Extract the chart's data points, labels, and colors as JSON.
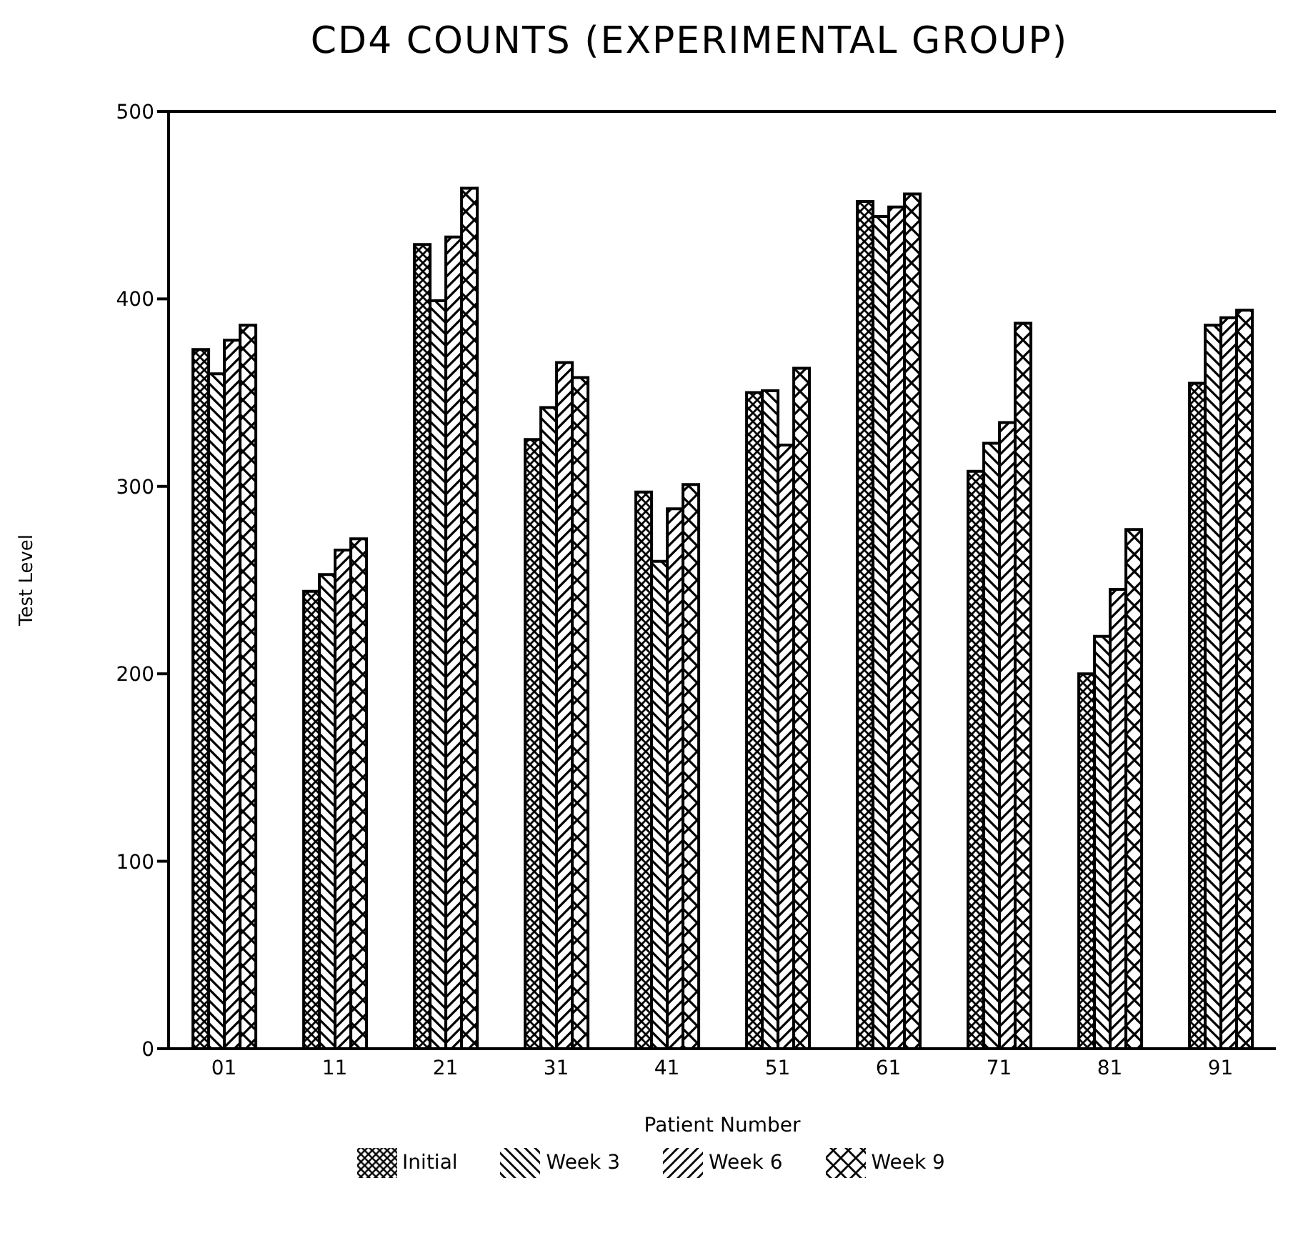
{
  "chart_data": {
    "type": "bar",
    "title": "CD4 COUNTS (EXPERIMENTAL GROUP)",
    "xlabel": "Patient Number",
    "ylabel": "Test Level",
    "categories": [
      "01",
      "11",
      "21",
      "31",
      "41",
      "51",
      "61",
      "71",
      "81",
      "91"
    ],
    "series": [
      {
        "name": "Initial",
        "color": "#000000",
        "values": [
          373,
          244,
          429,
          325,
          297,
          350,
          452,
          308,
          200,
          355
        ]
      },
      {
        "name": "Week 3",
        "color": "#000000",
        "values": [
          360,
          253,
          399,
          342,
          260,
          351,
          444,
          323,
          220,
          386
        ]
      },
      {
        "name": "Week 6",
        "color": "#000000",
        "values": [
          378,
          266,
          433,
          366,
          288,
          322,
          449,
          334,
          245,
          390
        ]
      },
      {
        "name": "Week 9",
        "color": "#000000",
        "values": [
          386,
          272,
          459,
          358,
          301,
          363,
          456,
          387,
          277,
          394
        ]
      }
    ],
    "ylim": [
      0,
      500
    ],
    "yticks": [
      0,
      100,
      200,
      300,
      400,
      500
    ],
    "grid": false,
    "legend": "bottom"
  }
}
